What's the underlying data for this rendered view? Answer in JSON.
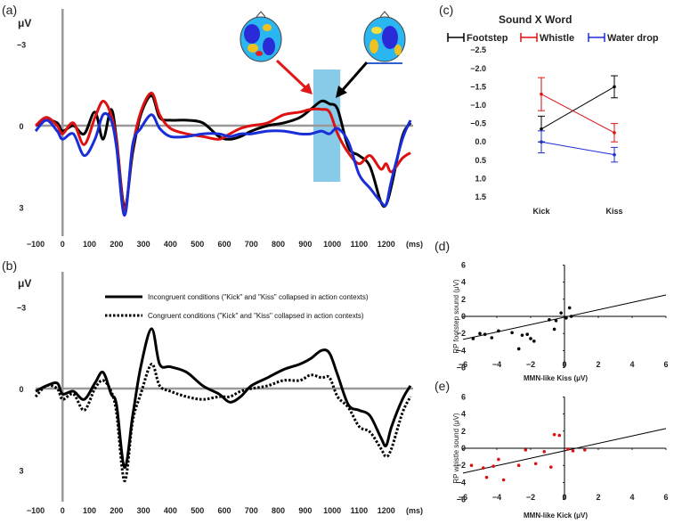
{
  "chart_data": [
    {
      "type": "line",
      "panel": "(a)",
      "ylabel": "μV",
      "xlabel": "(ms)",
      "xlim": [
        -100,
        1300
      ],
      "ylim_inverted": [
        -4,
        4
      ],
      "yticks": [
        "−3",
        "0",
        "3"
      ],
      "xticks": [
        "−100",
        "0",
        "100",
        "200",
        "300",
        "400",
        "500",
        "600",
        "700",
        "800",
        "900",
        "1000",
        "1100",
        "1200"
      ],
      "highlight_window": [
        930,
        1030
      ],
      "series": [
        {
          "name": "Footstep",
          "color": "#000000",
          "x": [
            -100,
            -60,
            -20,
            0,
            40,
            80,
            120,
            150,
            180,
            200,
            230,
            260,
            290,
            330,
            360,
            400,
            460,
            520,
            580,
            620,
            660,
            700,
            760,
            820,
            880,
            920,
            960,
            990,
            1020,
            1060,
            1100,
            1140,
            1180,
            1200,
            1220,
            1260,
            1290
          ],
          "y": [
            0.0,
            -0.2,
            -0.1,
            0.2,
            0.0,
            0.3,
            -0.5,
            0.5,
            -0.6,
            0.5,
            3.0,
            1.0,
            -0.4,
            -1.1,
            -0.3,
            -0.2,
            -0.2,
            -0.1,
            0.4,
            0.5,
            0.4,
            0.2,
            0.0,
            -0.1,
            -0.3,
            -0.6,
            -0.9,
            -0.8,
            -0.6,
            0.8,
            1.1,
            1.5,
            2.8,
            2.9,
            2.2,
            0.4,
            -0.1
          ]
        },
        {
          "name": "Whistle",
          "color": "#dd1111",
          "x": [
            -100,
            -60,
            -20,
            0,
            40,
            80,
            120,
            150,
            180,
            200,
            230,
            260,
            290,
            330,
            360,
            400,
            460,
            520,
            580,
            620,
            660,
            700,
            760,
            820,
            880,
            920,
            960,
            990,
            1020,
            1060,
            1100,
            1140,
            1180,
            1200,
            1220,
            1260,
            1290
          ],
          "y": [
            0.0,
            -0.3,
            0.0,
            0.3,
            -0.1,
            0.7,
            -0.3,
            -0.9,
            -0.4,
            0.6,
            3.1,
            0.8,
            -0.5,
            -1.2,
            -0.4,
            0.1,
            0.3,
            0.4,
            0.5,
            0.3,
            0.1,
            0.0,
            -0.1,
            -0.4,
            -0.5,
            -0.6,
            -0.6,
            -0.5,
            0.3,
            1.0,
            1.4,
            1.1,
            1.6,
            1.4,
            1.7,
            1.2,
            1.0
          ]
        },
        {
          "name": "Water drop",
          "color": "#1a2ed8",
          "x": [
            -100,
            -60,
            -20,
            0,
            40,
            80,
            120,
            150,
            180,
            200,
            230,
            260,
            290,
            330,
            360,
            400,
            460,
            520,
            580,
            620,
            660,
            700,
            760,
            820,
            880,
            920,
            960,
            990,
            1020,
            1060,
            1100,
            1140,
            1180,
            1200,
            1220,
            1260,
            1290
          ],
          "y": [
            0.2,
            -0.2,
            0.2,
            0.5,
            0.3,
            1.1,
            0.5,
            -0.4,
            -0.2,
            0.8,
            3.3,
            0.7,
            0.1,
            -0.4,
            0.1,
            0.4,
            0.4,
            0.3,
            0.3,
            0.4,
            0.3,
            0.3,
            0.2,
            0.2,
            0.3,
            0.3,
            0.2,
            0.3,
            0.1,
            0.6,
            1.8,
            2.3,
            2.8,
            2.9,
            2.0,
            0.5,
            -0.2
          ]
        }
      ],
      "topomaps": [
        "left map (red arrow)",
        "right map (black arrow)"
      ]
    },
    {
      "type": "line",
      "panel": "(b)",
      "ylabel": "μV",
      "xlabel": "(ms)",
      "xlim": [
        -100,
        1300
      ],
      "ylim_inverted": [
        -4,
        4
      ],
      "yticks": [
        "−3",
        "0",
        "3"
      ],
      "xticks": [
        "−100",
        "0",
        "100",
        "200",
        "300",
        "400",
        "500",
        "600",
        "700",
        "800",
        "900",
        "1000",
        "1100",
        "1200"
      ],
      "legend": [
        "Incongruent conditions (\"Kick\" and \"Kiss\" collapsed in action contexts)",
        "Congruent  conditions (\"Kick\" and \"Kiss\" collapsed in action contexts)"
      ],
      "series": [
        {
          "name": "Incongruent",
          "style": "solid",
          "x": [
            -100,
            -60,
            -20,
            0,
            40,
            80,
            120,
            150,
            180,
            200,
            230,
            260,
            290,
            330,
            360,
            400,
            460,
            520,
            580,
            620,
            660,
            700,
            760,
            820,
            880,
            920,
            960,
            990,
            1020,
            1060,
            1100,
            1140,
            1180,
            1200,
            1220,
            1260,
            1290
          ],
          "y": [
            0.1,
            -0.1,
            -0.2,
            0.2,
            0.1,
            0.4,
            -0.2,
            -0.6,
            0.2,
            0.6,
            2.9,
            1.0,
            -0.8,
            -2.2,
            -0.9,
            -0.8,
            -0.6,
            -0.1,
            0.2,
            0.5,
            0.3,
            -0.1,
            -0.4,
            -0.7,
            -0.9,
            -1.1,
            -1.4,
            -1.3,
            -0.5,
            0.6,
            0.8,
            1.0,
            1.8,
            2.1,
            1.4,
            0.4,
            -0.1
          ]
        },
        {
          "name": "Congruent",
          "style": "dotted",
          "x": [
            -100,
            -60,
            -20,
            0,
            40,
            80,
            120,
            150,
            180,
            200,
            230,
            260,
            290,
            330,
            360,
            400,
            460,
            520,
            580,
            620,
            660,
            700,
            760,
            820,
            880,
            920,
            960,
            990,
            1020,
            1060,
            1100,
            1140,
            1180,
            1200,
            1220,
            1260,
            1290
          ],
          "y": [
            0.3,
            -0.1,
            0.0,
            0.4,
            0.2,
            0.8,
            0.0,
            -0.3,
            0.1,
            0.9,
            3.4,
            1.2,
            0.2,
            -0.9,
            -0.1,
            0.1,
            0.3,
            0.4,
            0.3,
            0.3,
            0.1,
            0.0,
            -0.1,
            -0.3,
            -0.3,
            -0.5,
            -0.4,
            -0.4,
            0.3,
            0.7,
            1.4,
            1.6,
            2.2,
            2.5,
            2.2,
            0.9,
            0.3
          ]
        }
      ]
    },
    {
      "type": "line",
      "panel": "(c)",
      "title": "Sound X Word",
      "categories": [
        "Kick",
        "Kiss"
      ],
      "yticks": [
        "−2.5",
        "−2.0",
        "−1.5",
        "−1.0",
        "−0.5",
        "0.0",
        "0.5",
        "1.0",
        "1.5"
      ],
      "ylim_inverted": [
        -2.5,
        1.5
      ],
      "series": [
        {
          "name": "Footstep",
          "color": "#000000",
          "values": [
            -0.35,
            -1.5
          ],
          "err": [
            0.35,
            0.3
          ]
        },
        {
          "name": "Whistle",
          "color": "#dd1111",
          "values": [
            -1.3,
            -0.25
          ],
          "err": [
            0.45,
            0.25
          ]
        },
        {
          "name": "Water drop",
          "color": "#1a2ed8",
          "values": [
            0.0,
            0.35
          ],
          "err": [
            0.3,
            0.2
          ]
        }
      ]
    },
    {
      "type": "scatter",
      "panel": "(d)",
      "xlabel": "MMN-like Kiss (μV)",
      "ylabel": "RP footstep sound (μV)",
      "xlim": [
        -6,
        6
      ],
      "ylim": [
        -6,
        6
      ],
      "ticks": [
        "−6",
        "−4",
        "−2",
        "0",
        "2",
        "4",
        "6"
      ],
      "color": "#000000",
      "points": [
        [
          -5.4,
          -2.6
        ],
        [
          -5.0,
          -2.0
        ],
        [
          -4.7,
          -2.1
        ],
        [
          -4.3,
          -2.5
        ],
        [
          -3.9,
          -1.7
        ],
        [
          -3.1,
          -1.9
        ],
        [
          -2.7,
          -3.8
        ],
        [
          -2.5,
          -2.2
        ],
        [
          -2.2,
          -2.1
        ],
        [
          -2.0,
          -2.6
        ],
        [
          -1.8,
          -2.9
        ],
        [
          -0.9,
          -0.4
        ],
        [
          -0.6,
          -1.5
        ],
        [
          -0.5,
          -0.5
        ],
        [
          -0.2,
          0.4
        ],
        [
          0.1,
          -0.2
        ],
        [
          0.3,
          1.0
        ],
        [
          0.4,
          0.0
        ]
      ],
      "fit": [
        [
          -6,
          -2.7
        ],
        [
          6,
          2.5
        ]
      ]
    },
    {
      "type": "scatter",
      "panel": "(e)",
      "xlabel": "MMN-like Kick (μV)",
      "ylabel": "RP whistle sound (μV)",
      "xlim": [
        -6,
        6
      ],
      "ylim": [
        -6,
        6
      ],
      "ticks": [
        "−6",
        "−4",
        "−2",
        "0",
        "2",
        "4",
        "6"
      ],
      "color": "#dd1111",
      "points": [
        [
          -5.5,
          -2.0
        ],
        [
          -4.8,
          -2.3
        ],
        [
          -4.6,
          -3.4
        ],
        [
          -4.2,
          -2.1
        ],
        [
          -3.9,
          -1.3
        ],
        [
          -3.6,
          -3.7
        ],
        [
          -2.7,
          -2.0
        ],
        [
          -2.3,
          -0.2
        ],
        [
          -1.7,
          -1.8
        ],
        [
          -1.2,
          -0.4
        ],
        [
          -0.8,
          -2.2
        ],
        [
          -0.6,
          1.6
        ],
        [
          -0.3,
          1.5
        ],
        [
          0.2,
          -0.1
        ],
        [
          0.5,
          -0.3
        ],
        [
          1.2,
          -0.2
        ]
      ],
      "fit": [
        [
          -6,
          -2.9
        ],
        [
          6,
          2.3
        ]
      ]
    }
  ]
}
